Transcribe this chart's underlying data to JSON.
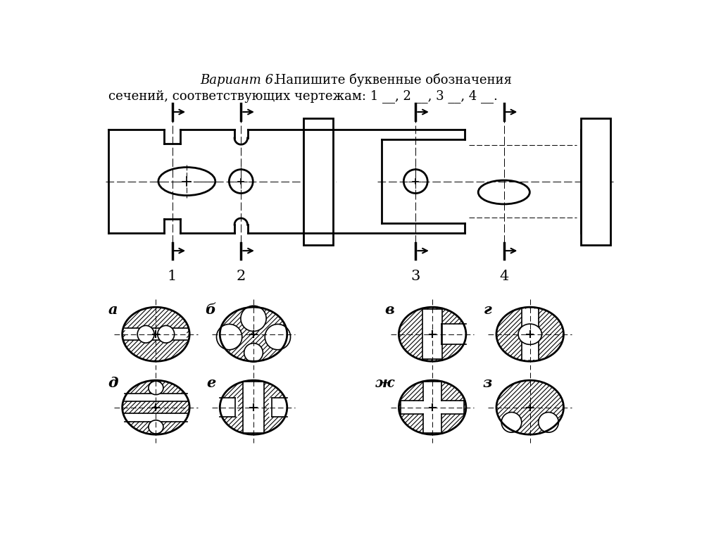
{
  "title_italic": "Вариант 6.",
  "title_normal": " Напишите буквенные обозначения",
  "title_line2": "сечений, соответствующих чертежам: 1 __, 2 __, 3 __, 4 __.",
  "bg_color": "#ffffff",
  "fg_color": "#000000"
}
